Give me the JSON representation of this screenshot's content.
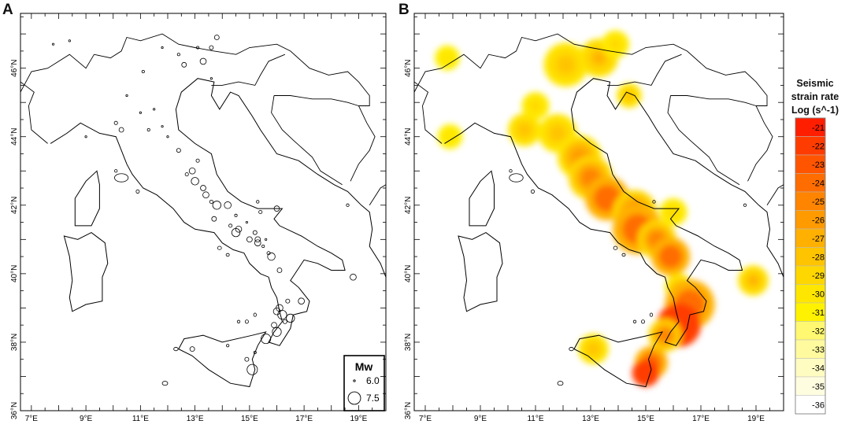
{
  "panels": {
    "a": {
      "letter": "A"
    },
    "b": {
      "letter": "B"
    }
  },
  "axes": {
    "lon_ticks": [
      "7°E",
      "9°E",
      "11°E",
      "13°E",
      "15°E",
      "17°E",
      "19°E"
    ],
    "lat_ticks": [
      "46°N",
      "44°N",
      "42°N",
      "40°N",
      "38°N",
      "36°N"
    ]
  },
  "legend": {
    "title": "Mw",
    "items": [
      {
        "label": "6.0",
        "mw": 6.0
      },
      {
        "label": "7.5",
        "mw": 7.5
      }
    ]
  },
  "colorbar": {
    "title_lines": [
      "Seismic",
      "strain rate",
      "Log (s^-1)"
    ],
    "levels": [
      "-21",
      "-22",
      "-23",
      "-24",
      "-25",
      "-26",
      "-27",
      "-28",
      "-29",
      "-30",
      "-31",
      "-32",
      "-33",
      "-34",
      "-35",
      "-36"
    ],
    "colors": [
      "#ff1e00",
      "#ff3c00",
      "#ff5500",
      "#ff6d00",
      "#ff8400",
      "#ff9a00",
      "#ffb000",
      "#ffc400",
      "#ffd700",
      "#ffe600",
      "#fff200",
      "#fff870",
      "#fffa9e",
      "#fffcc2",
      "#fffde0",
      "#ffffff"
    ]
  },
  "earthquakes": [
    {
      "lon": 7.8,
      "lat": 46.7,
      "mw": 6.0
    },
    {
      "lon": 8.4,
      "lat": 46.8,
      "mw": 6.0
    },
    {
      "lon": 11.8,
      "lat": 46.6,
      "mw": 6.0
    },
    {
      "lon": 12.4,
      "lat": 46.4,
      "mw": 6.1
    },
    {
      "lon": 13.1,
      "lat": 46.6,
      "mw": 6.1
    },
    {
      "lon": 13.6,
      "lat": 46.6,
      "mw": 6.3
    },
    {
      "lon": 13.3,
      "lat": 46.2,
      "mw": 6.6
    },
    {
      "lon": 13.8,
      "lat": 46.9,
      "mw": 6.4
    },
    {
      "lon": 12.6,
      "lat": 46.1,
      "mw": 6.4
    },
    {
      "lon": 13.6,
      "lat": 45.7,
      "mw": 6.0
    },
    {
      "lon": 11.1,
      "lat": 45.9,
      "mw": 6.1
    },
    {
      "lon": 11.0,
      "lat": 44.7,
      "mw": 6.0
    },
    {
      "lon": 11.8,
      "lat": 44.3,
      "mw": 6.0
    },
    {
      "lon": 11.3,
      "lat": 44.2,
      "mw": 6.1
    },
    {
      "lon": 10.3,
      "lat": 44.2,
      "mw": 6.4
    },
    {
      "lon": 12.0,
      "lat": 44.0,
      "mw": 6.0
    },
    {
      "lon": 12.4,
      "lat": 43.6,
      "mw": 6.3
    },
    {
      "lon": 12.9,
      "lat": 43.0,
      "mw": 6.6
    },
    {
      "lon": 13.1,
      "lat": 43.3,
      "mw": 6.2
    },
    {
      "lon": 12.7,
      "lat": 42.9,
      "mw": 6.2
    },
    {
      "lon": 13.3,
      "lat": 42.5,
      "mw": 6.5
    },
    {
      "lon": 13.0,
      "lat": 42.7,
      "mw": 6.8
    },
    {
      "lon": 13.4,
      "lat": 42.3,
      "mw": 6.6
    },
    {
      "lon": 13.8,
      "lat": 42.0,
      "mw": 6.9
    },
    {
      "lon": 13.6,
      "lat": 42.1,
      "mw": 6.2
    },
    {
      "lon": 14.2,
      "lat": 42.0,
      "mw": 6.7
    },
    {
      "lon": 14.5,
      "lat": 41.7,
      "mw": 6.1
    },
    {
      "lon": 13.7,
      "lat": 41.6,
      "mw": 6.4
    },
    {
      "lon": 14.3,
      "lat": 41.4,
      "mw": 6.2
    },
    {
      "lon": 14.6,
      "lat": 41.3,
      "mw": 6.6
    },
    {
      "lon": 14.5,
      "lat": 41.2,
      "mw": 6.9
    },
    {
      "lon": 14.9,
      "lat": 41.5,
      "mw": 6.0
    },
    {
      "lon": 15.2,
      "lat": 41.2,
      "mw": 6.3
    },
    {
      "lon": 15.3,
      "lat": 41.0,
      "mw": 6.5
    },
    {
      "lon": 15.0,
      "lat": 41.0,
      "mw": 6.5
    },
    {
      "lon": 15.6,
      "lat": 41.0,
      "mw": 6.0
    },
    {
      "lon": 15.3,
      "lat": 40.9,
      "mw": 6.6
    },
    {
      "lon": 15.5,
      "lat": 40.8,
      "mw": 6.1
    },
    {
      "lon": 15.8,
      "lat": 40.5,
      "mw": 6.8
    },
    {
      "lon": 15.4,
      "lat": 41.8,
      "mw": 6.2
    },
    {
      "lon": 16.0,
      "lat": 41.9,
      "mw": 6.5
    },
    {
      "lon": 15.7,
      "lat": 40.6,
      "mw": 6.2
    },
    {
      "lon": 16.1,
      "lat": 40.1,
      "mw": 6.4
    },
    {
      "lon": 18.8,
      "lat": 39.9,
      "mw": 6.6
    },
    {
      "lon": 16.1,
      "lat": 39.0,
      "mw": 6.7
    },
    {
      "lon": 16.4,
      "lat": 39.2,
      "mw": 6.3
    },
    {
      "lon": 16.9,
      "lat": 39.2,
      "mw": 6.6
    },
    {
      "lon": 16.2,
      "lat": 38.8,
      "mw": 7.0
    },
    {
      "lon": 16.0,
      "lat": 38.9,
      "mw": 6.7
    },
    {
      "lon": 16.5,
      "lat": 38.7,
      "mw": 6.9
    },
    {
      "lon": 15.9,
      "lat": 38.5,
      "mw": 6.5
    },
    {
      "lon": 16.3,
      "lat": 38.6,
      "mw": 6.3
    },
    {
      "lon": 16.0,
      "lat": 38.3,
      "mw": 7.0
    },
    {
      "lon": 15.6,
      "lat": 38.1,
      "mw": 7.1
    },
    {
      "lon": 15.1,
      "lat": 37.2,
      "mw": 7.2
    },
    {
      "lon": 14.9,
      "lat": 37.5,
      "mw": 6.3
    },
    {
      "lon": 15.2,
      "lat": 37.7,
      "mw": 6.1
    },
    {
      "lon": 14.2,
      "lat": 37.9,
      "mw": 6.1
    },
    {
      "lon": 12.9,
      "lat": 37.8,
      "mw": 6.4
    },
    {
      "lon": 11.5,
      "lat": 44.8,
      "mw": 6.0
    },
    {
      "lon": 10.5,
      "lat": 45.2,
      "mw": 6.0
    },
    {
      "lon": 10.1,
      "lat": 44.4,
      "mw": 6.2
    },
    {
      "lon": 9.0,
      "lat": 44.0,
      "mw": 6.0
    }
  ],
  "strain_hotspots": [
    {
      "lon": 7.8,
      "lat": 46.3,
      "r": 0.45,
      "level": -30
    },
    {
      "lon": 7.9,
      "lat": 44.0,
      "r": 0.45,
      "level": -30
    },
    {
      "lon": 12.1,
      "lat": 46.1,
      "r": 0.8,
      "level": -28
    },
    {
      "lon": 13.3,
      "lat": 46.3,
      "r": 0.7,
      "level": -27
    },
    {
      "lon": 13.9,
      "lat": 46.7,
      "r": 0.5,
      "level": -29
    },
    {
      "lon": 14.4,
      "lat": 45.2,
      "r": 0.45,
      "level": -28
    },
    {
      "lon": 11.0,
      "lat": 44.9,
      "r": 0.5,
      "level": -29
    },
    {
      "lon": 10.6,
      "lat": 44.2,
      "r": 0.6,
      "level": -28
    },
    {
      "lon": 11.8,
      "lat": 44.1,
      "r": 0.7,
      "level": -28
    },
    {
      "lon": 12.6,
      "lat": 43.4,
      "r": 0.8,
      "level": -26
    },
    {
      "lon": 13.0,
      "lat": 42.8,
      "r": 0.8,
      "level": -25
    },
    {
      "lon": 13.6,
      "lat": 42.2,
      "r": 0.8,
      "level": -24
    },
    {
      "lon": 14.6,
      "lat": 41.8,
      "r": 0.8,
      "level": -25
    },
    {
      "lon": 14.7,
      "lat": 41.3,
      "r": 0.9,
      "level": -24
    },
    {
      "lon": 15.4,
      "lat": 41.0,
      "r": 0.7,
      "level": -25
    },
    {
      "lon": 15.9,
      "lat": 40.5,
      "r": 0.7,
      "level": -24
    },
    {
      "lon": 16.0,
      "lat": 41.8,
      "r": 0.5,
      "level": -29
    },
    {
      "lon": 16.2,
      "lat": 39.6,
      "r": 0.5,
      "level": -28
    },
    {
      "lon": 18.9,
      "lat": 39.8,
      "r": 0.55,
      "level": -27
    },
    {
      "lon": 16.6,
      "lat": 39.1,
      "r": 0.9,
      "level": -24
    },
    {
      "lon": 16.2,
      "lat": 38.5,
      "r": 0.8,
      "level": -22
    },
    {
      "lon": 15.7,
      "lat": 38.2,
      "r": 0.6,
      "level": -25
    },
    {
      "lon": 15.2,
      "lat": 37.4,
      "r": 0.6,
      "level": -24
    },
    {
      "lon": 15.0,
      "lat": 37.1,
      "r": 0.5,
      "level": -22
    },
    {
      "lon": 13.1,
      "lat": 37.8,
      "r": 0.55,
      "level": -28
    }
  ]
}
